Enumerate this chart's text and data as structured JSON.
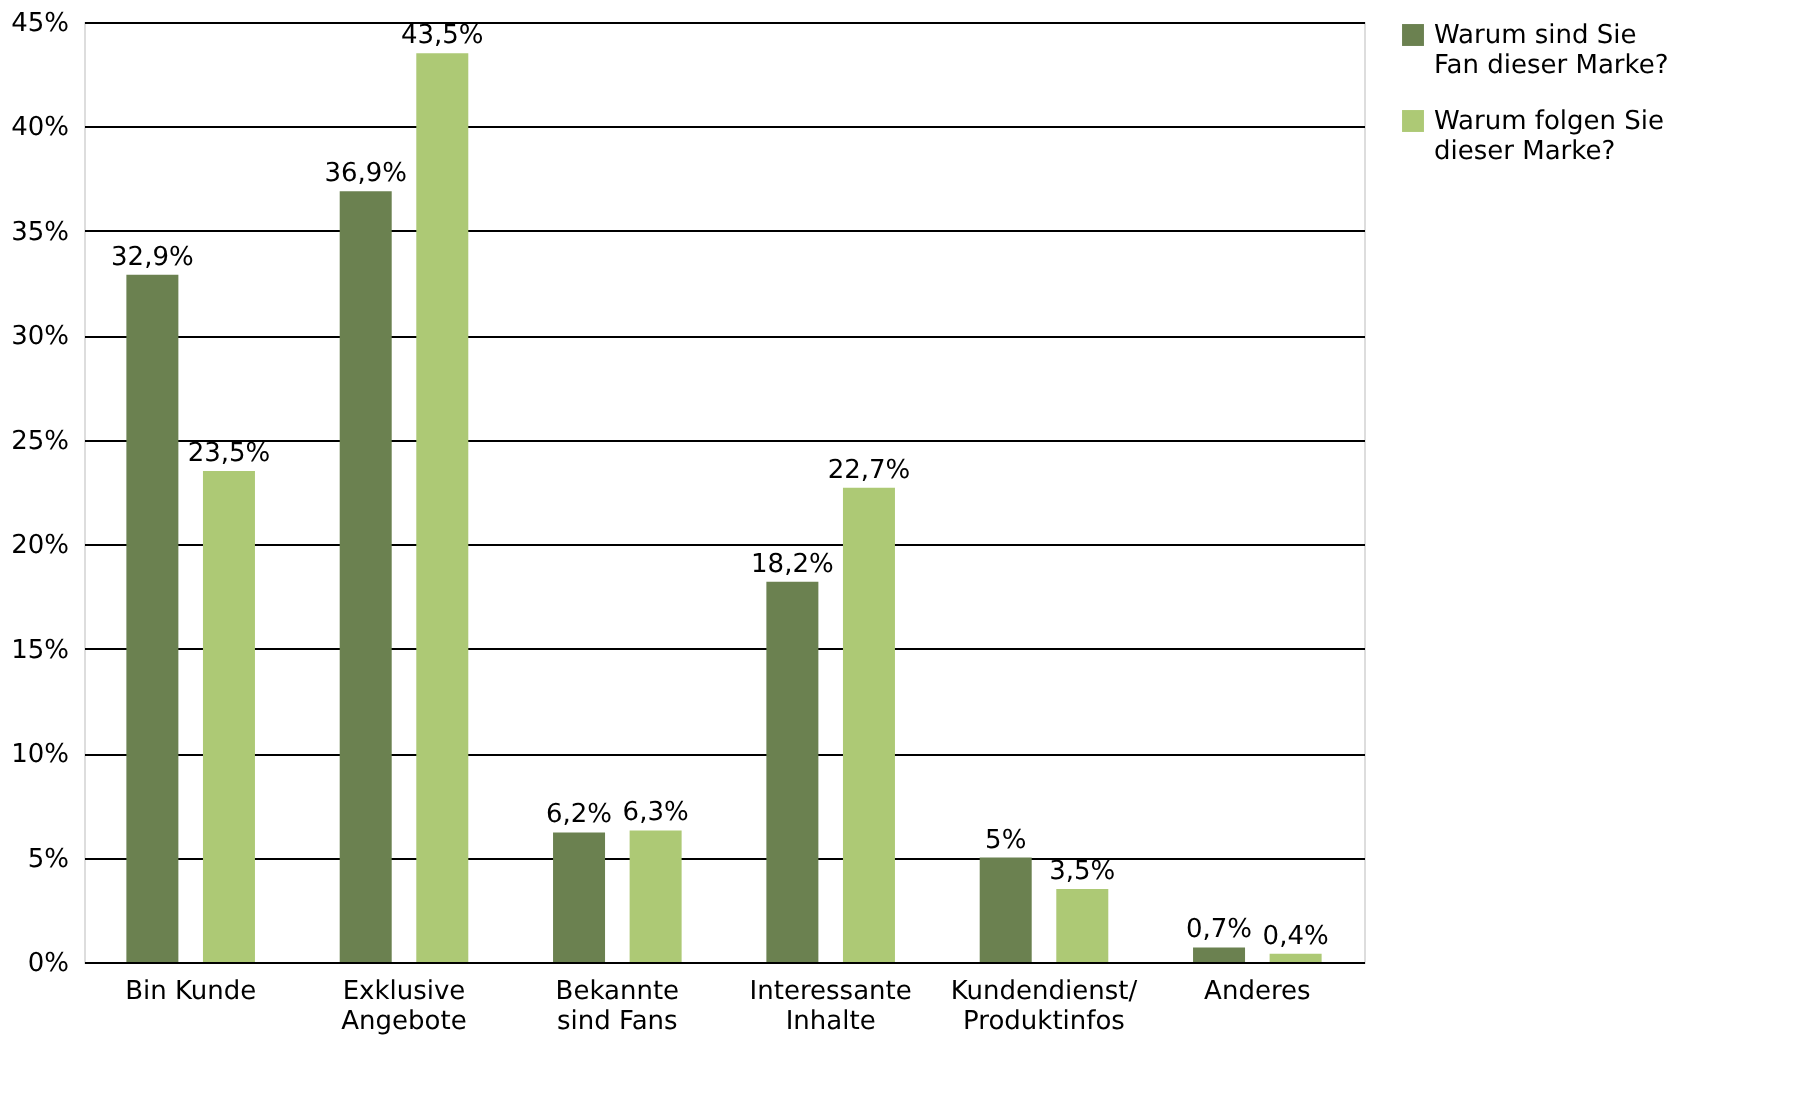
{
  "chart_data": {
    "type": "bar",
    "categories": [
      "Bin Kunde",
      "Exklusive\nAngebote",
      "Bekannte\nsind Fans",
      "Interessante\nInhalte",
      "Kundendienst/\nProduktinfos",
      "Anderes"
    ],
    "series": [
      {
        "name": "Warum sind Sie\nFan dieser Marke?",
        "color": "#6b8150",
        "values": [
          32.9,
          36.9,
          6.2,
          18.2,
          5,
          0.7
        ],
        "value_labels": [
          "32,9%",
          "36,9%",
          "6,2%",
          "18,2%",
          "5%",
          "0,7%"
        ]
      },
      {
        "name": "Warum folgen Sie\ndieser Marke?",
        "color": "#adc975",
        "values": [
          23.5,
          43.5,
          6.3,
          22.7,
          3.5,
          0.4
        ],
        "value_labels": [
          "23,5%",
          "43,5%",
          "6,3%",
          "22,7%",
          "3,5%",
          "0,4%"
        ]
      }
    ],
    "ylim": [
      0,
      45
    ],
    "yticks": [
      {
        "value": 0,
        "label": "0%"
      },
      {
        "value": 5,
        "label": "5%"
      },
      {
        "value": 10,
        "label": "10%"
      },
      {
        "value": 15,
        "label": "15%"
      },
      {
        "value": 20,
        "label": "20%"
      },
      {
        "value": 25,
        "label": "25%"
      },
      {
        "value": 30,
        "label": "30%"
      },
      {
        "value": 35,
        "label": "35%"
      },
      {
        "value": 40,
        "label": "40%"
      },
      {
        "value": 45,
        "label": "45%"
      }
    ],
    "grid": "y",
    "legend": "top right"
  }
}
